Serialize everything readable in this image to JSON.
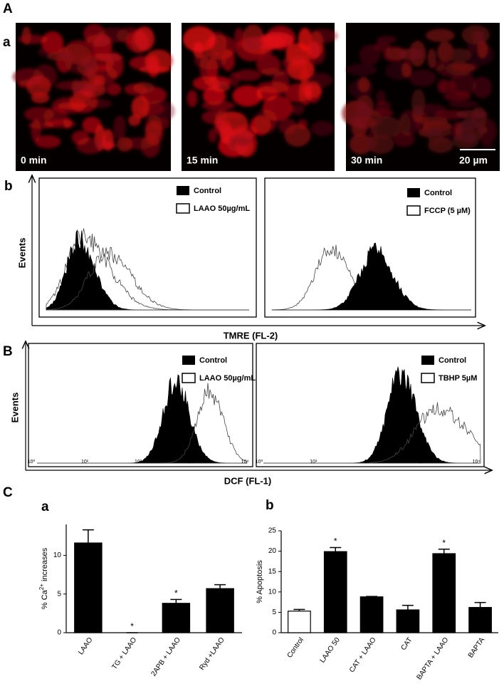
{
  "panel_labels": {
    "A": "A",
    "A_a": "a",
    "A_b": "b",
    "B": "B",
    "C": "C",
    "C_a": "a",
    "C_b": "b"
  },
  "images": {
    "labels": [
      "0 min",
      "15 min",
      "30 min"
    ],
    "scale_bar": "20 µm"
  },
  "flow_A": {
    "y_label": "Events",
    "x_label": "TMRE (FL-2)",
    "legends": [
      [
        "Control",
        "LAAO 50µg/mL"
      ],
      [
        "Control",
        "FCCP (5 µM)"
      ]
    ]
  },
  "flow_B": {
    "y_label": "Events",
    "x_label": "DCF (FL-1)",
    "legends": [
      [
        "Control",
        "LAAO 50µg/mL"
      ],
      [
        "Control",
        "TBHP 5µM"
      ]
    ],
    "xtick_labels": [
      "10⁰",
      "10¹",
      "10²",
      "10³",
      "10⁴"
    ]
  },
  "chart_data": [
    {
      "type": "bar",
      "y_label": [
        "% Ca",
        "2+",
        " increases"
      ],
      "categories": [
        "LAAO",
        "TG + LAAO",
        "2APB + LAAO",
        "Ryd +LAAO"
      ],
      "values": [
        11.6,
        0,
        3.8,
        5.7
      ],
      "errors": [
        1.7,
        0,
        0.5,
        0.5
      ],
      "colors": [
        "#000000",
        "#000000",
        "#000000",
        "#000000"
      ],
      "significance": [
        null,
        "*",
        "*",
        null
      ],
      "ylim": [
        0,
        14
      ],
      "yticks": [
        0,
        5,
        10
      ]
    },
    {
      "type": "bar",
      "y_label": "% Apoptosis",
      "categories": [
        "Control",
        "LAAO  50",
        "CAT + LAAO",
        "CAT",
        "BAPTA + LAAO",
        "BAPTA"
      ],
      "values": [
        5.3,
        19.9,
        8.8,
        5.6,
        19.4,
        6.2
      ],
      "errors": [
        0.4,
        1.0,
        0.1,
        1.1,
        1.1,
        1.2
      ],
      "colors": [
        "#ffffff",
        "#000000",
        "#000000",
        "#000000",
        "#000000",
        "#000000"
      ],
      "significance": [
        null,
        "*",
        null,
        null,
        "*",
        null
      ],
      "ylim": [
        0,
        25
      ],
      "yticks": [
        0,
        5,
        10,
        15,
        20,
        25
      ]
    }
  ]
}
